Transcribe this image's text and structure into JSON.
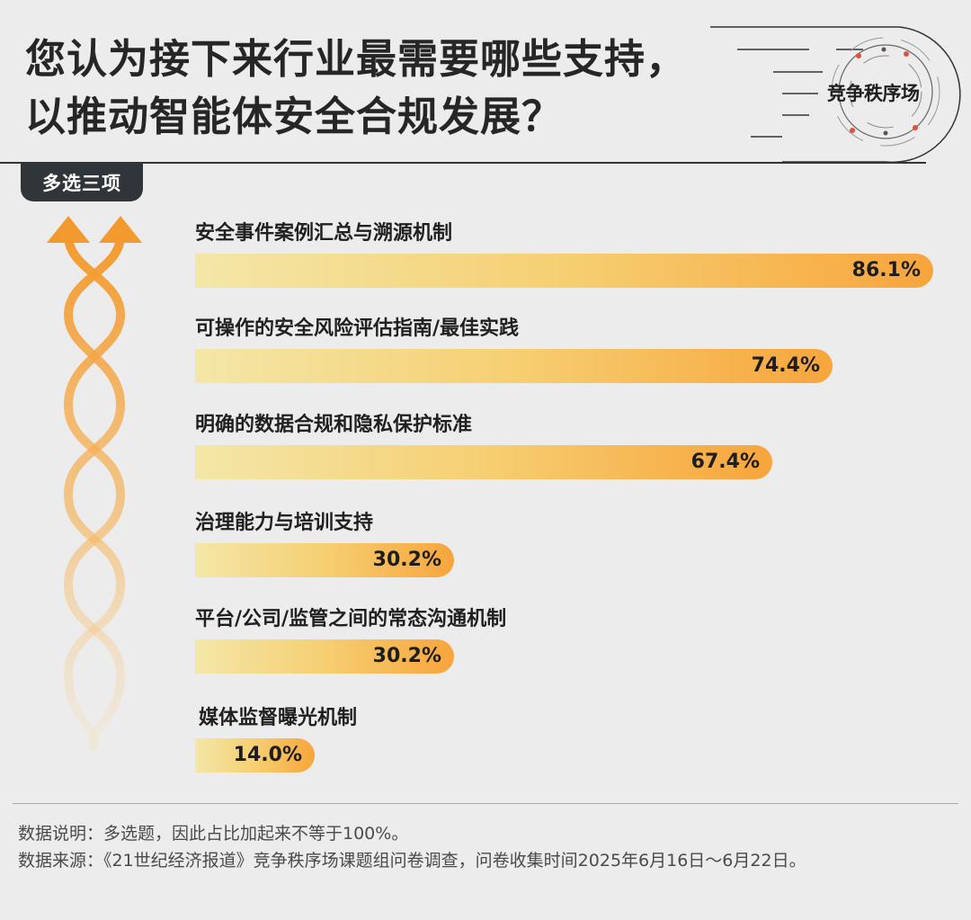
{
  "header": {
    "title_line1": "您认为接下来行业最需要哪些支持，",
    "title_line2": "以推动智能体安全合规发展？",
    "badge": "竞争秩序场",
    "tag": "多选三项"
  },
  "chart_data": {
    "type": "bar",
    "orientation": "horizontal",
    "categories": [
      "安全事件案例汇总与溯源机制",
      "可操作的安全风险评估指南/最佳实践",
      "明确的数据合规和隐私保护标准",
      "治理能力与培训支持",
      "平台/公司/监管之间的常态沟通机制",
      "媒体监督曝光机制"
    ],
    "values": [
      86.1,
      74.4,
      67.4,
      30.2,
      30.2,
      14.0
    ],
    "value_labels": [
      "86.1%",
      "74.4%",
      "67.4%",
      "30.2%",
      "30.2%",
      "14.0%"
    ],
    "xlim": [
      0,
      100
    ],
    "colors": {
      "bar_start": "#f3e7a8",
      "bar_mid": "#f6cf72",
      "bar_end": "#f7a53c"
    }
  },
  "footer": {
    "note": "数据说明：多选题，因此占比加起来不等于100%。",
    "source": "数据来源：《21世纪经济报道》竞争秩序场课题组问卷调查，问卷收集时间2025年6月16日～6月22日。"
  },
  "colors": {
    "background": "#ececec",
    "dark": "#2f3538",
    "accent": "#f39a2e",
    "dot": "#e0503a"
  },
  "icons": [
    "double-helix-arrows-icon",
    "orbit-badge-icon"
  ]
}
